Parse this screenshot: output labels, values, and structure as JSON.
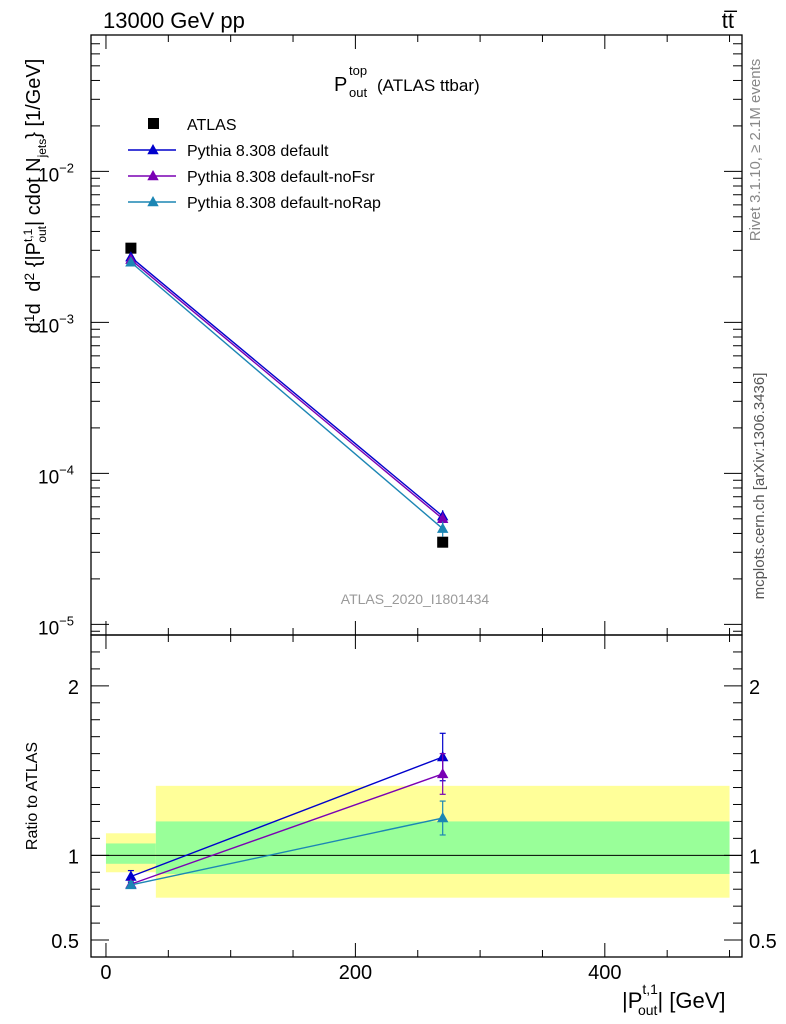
{
  "header": {
    "left": "13000 GeV pp",
    "right": "tt̅"
  },
  "side_text": {
    "rivet": "Rivet 3.1.10, ≥ 2.1M events",
    "mcplots": "mcplots.cern.ch [arXiv:1306.3436]"
  },
  "analysis_id": "ATLAS_2020_I1801434",
  "colors": {
    "data": "#000000",
    "default": "#0000cc",
    "noFsr": "#7a00b4",
    "noRap": "#1c86b4",
    "band_inner": "#99ff99",
    "band_outer": "#ffff99"
  },
  "chart_data": [
    {
      "type": "scatter",
      "panel": "main",
      "title": "P_out^top (ATLAS ttbar)",
      "title_parts": {
        "main": "P",
        "sup": "top",
        "sub": "out",
        "rest": "(ATLAS ttbar)"
      },
      "xlabel": "|P_out^t,1| [GeV]",
      "ylabel": "dσ/d{|P_out^t,1| cdot N_jets} [1/GeV]",
      "yscale": "log",
      "xlim": [
        -12,
        510
      ],
      "ylim": [
        8.5e-06,
        0.08
      ],
      "ytick_labels": [
        {
          "value": 0.01,
          "mant": "10",
          "exp": "−2"
        },
        {
          "value": 0.001,
          "mant": "10",
          "exp": "−3"
        },
        {
          "value": 0.0001,
          "mant": "10",
          "exp": "−4"
        },
        {
          "value": 1e-05,
          "mant": "10",
          "exp": "−5"
        }
      ],
      "legend_position": "top-left",
      "series": [
        {
          "name": "ATLAS",
          "key": "data",
          "marker": "square",
          "x": [
            20,
            270
          ],
          "y": [
            0.0031,
            3.5e-05
          ]
        },
        {
          "name": "Pythia 8.308 default",
          "key": "default",
          "marker": "triangle",
          "x": [
            20,
            270
          ],
          "y": [
            0.0027,
            5.2e-05
          ],
          "err": [
            8e-05,
            5e-06
          ]
        },
        {
          "name": "Pythia 8.308 default-noFsr",
          "key": "noFsr",
          "marker": "triangle",
          "x": [
            20,
            270
          ],
          "y": [
            0.0026,
            5e-05
          ],
          "err": [
            8e-05,
            5e-06
          ]
        },
        {
          "name": "Pythia 8.308 default-noRap",
          "key": "noRap",
          "marker": "triangle",
          "x": [
            20,
            270
          ],
          "y": [
            0.0025,
            4.3e-05
          ],
          "err": [
            8e-05,
            5e-06
          ]
        }
      ]
    },
    {
      "type": "scatter",
      "panel": "ratio",
      "xlabel": "|P_out^t,1| [GeV]",
      "ylabel": "Ratio to ATLAS",
      "xlim": [
        -12,
        510
      ],
      "ylim": [
        0.4,
        2.3
      ],
      "xticks": [
        0,
        200,
        400
      ],
      "yticks": [
        0.5,
        1,
        2
      ],
      "ytick_labels": [
        "0.5",
        "1",
        "2"
      ],
      "bands": [
        {
          "x": [
            0,
            40
          ],
          "inner": [
            0.95,
            1.07
          ],
          "outer": [
            0.9,
            1.13
          ]
        },
        {
          "x": [
            40,
            500
          ],
          "inner": [
            0.89,
            1.2
          ],
          "outer": [
            0.75,
            1.41
          ]
        }
      ],
      "series": [
        {
          "name": "Pythia 8.308 default",
          "key": "default",
          "x": [
            20,
            270
          ],
          "y": [
            0.875,
            1.58
          ],
          "err": [
            0.035,
            0.14
          ]
        },
        {
          "name": "Pythia 8.308 default-noFsr",
          "key": "noFsr",
          "x": [
            20,
            270
          ],
          "y": [
            0.83,
            1.48
          ],
          "err": [
            0.02,
            0.12
          ]
        },
        {
          "name": "Pythia 8.308 default-noRap",
          "key": "noRap",
          "x": [
            20,
            270
          ],
          "y": [
            0.825,
            1.22
          ],
          "err": [
            0.02,
            0.1
          ]
        }
      ]
    }
  ]
}
